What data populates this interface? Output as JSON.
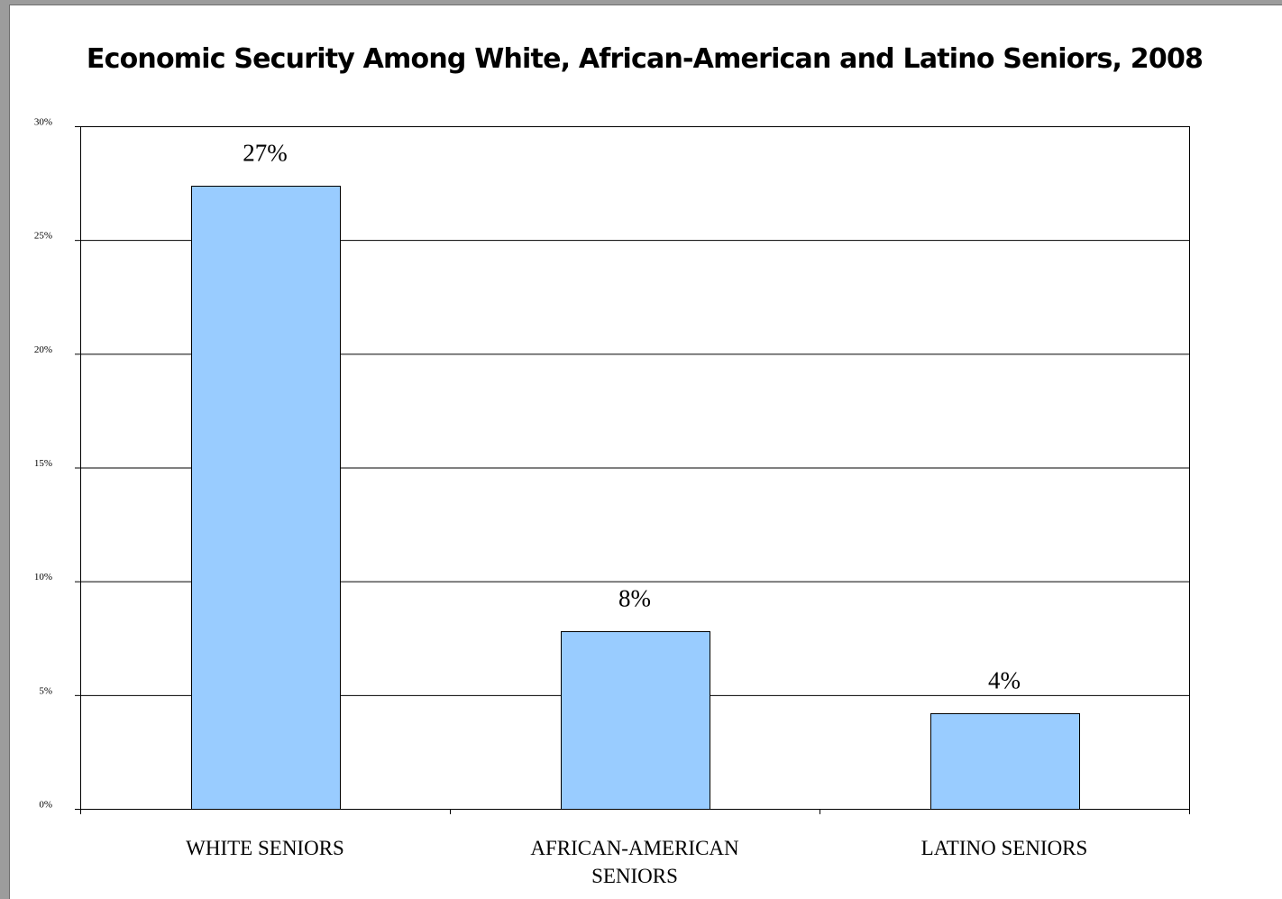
{
  "chart_data": {
    "type": "bar",
    "title": "Economic Security Among White, African-American and Latino Seniors, 2008",
    "xlabel": "",
    "ylabel": "",
    "categories": [
      "WHITE SENIORS",
      "AFRICAN-AMERICAN SENIORS",
      "LATINO SENIORS"
    ],
    "category_lines": [
      [
        "WHITE SENIORS"
      ],
      [
        "AFRICAN-AMERICAN",
        "SENIORS"
      ],
      [
        "LATINO SENIORS"
      ]
    ],
    "values": [
      27.4,
      7.8,
      4.2
    ],
    "data_labels": [
      "27%",
      "8%",
      "4%"
    ],
    "ylim": [
      0,
      30
    ],
    "yticks": [
      0,
      5,
      10,
      15,
      20,
      25,
      30
    ],
    "ytick_labels": [
      "0%",
      "5%",
      "10%",
      "15%",
      "20%",
      "25%",
      "30%"
    ],
    "grid": true,
    "legend": false,
    "bar_color": "#99ccff",
    "bar_border_color": "#000000"
  }
}
